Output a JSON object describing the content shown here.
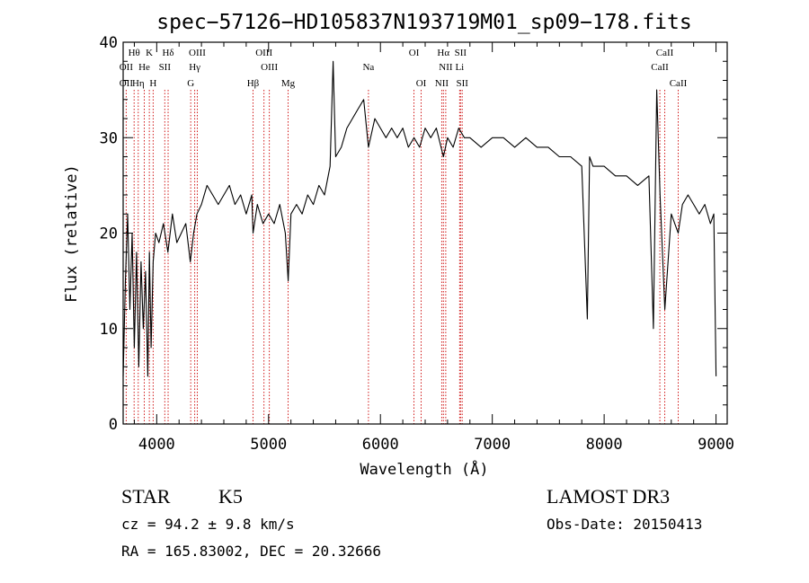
{
  "chart_data": {
    "type": "line",
    "title": "spec−57126−HD105837N193719M01_sp09−178.fits",
    "xlabel": "Wavelength (Å)",
    "ylabel": "Flux (relative)",
    "xlim": [
      3700,
      9100
    ],
    "ylim": [
      0,
      40
    ],
    "x_ticks": [
      4000,
      5000,
      6000,
      7000,
      8000,
      9000
    ],
    "y_ticks": [
      0,
      10,
      20,
      30,
      40
    ],
    "grid": false,
    "series": [
      {
        "x": [
          3700,
          3720,
          3740,
          3760,
          3780,
          3800,
          3820,
          3840,
          3860,
          3880,
          3900,
          3920,
          3935,
          3950,
          3968,
          3990,
          4020,
          4060,
          4100,
          4140,
          4180,
          4220,
          4260,
          4300,
          4330,
          4360,
          4400,
          4450,
          4500,
          4550,
          4600,
          4650,
          4700,
          4750,
          4800,
          4850,
          4861,
          4900,
          4950,
          5000,
          5050,
          5100,
          5150,
          5175,
          5200,
          5250,
          5300,
          5350,
          5400,
          5450,
          5500,
          5550,
          5577,
          5600,
          5650,
          5700,
          5750,
          5800,
          5850,
          5893,
          5950,
          6000,
          6050,
          6100,
          6150,
          6200,
          6250,
          6300,
          6350,
          6400,
          6450,
          6500,
          6563,
          6600,
          6650,
          6700,
          6750,
          6800,
          6900,
          7000,
          7100,
          7200,
          7300,
          7400,
          7500,
          7600,
          7700,
          7800,
          7850,
          7870,
          7900,
          8000,
          8100,
          8200,
          8300,
          8400,
          8440,
          8470,
          8500,
          8542,
          8600,
          8662,
          8700,
          8750,
          8800,
          8850,
          8900,
          8950,
          8980,
          9000
        ],
        "values": [
          5,
          15,
          22,
          12,
          20,
          8,
          18,
          6,
          17,
          10,
          16,
          5,
          18,
          8,
          17,
          20,
          19,
          21,
          18,
          22,
          19,
          20,
          21,
          17,
          20,
          22,
          23,
          25,
          24,
          23,
          24,
          25,
          23,
          24,
          22,
          24,
          20,
          23,
          21,
          22,
          21,
          23,
          20,
          15,
          22,
          23,
          22,
          24,
          23,
          25,
          24,
          27,
          38,
          28,
          29,
          31,
          32,
          33,
          34,
          29,
          32,
          31,
          30,
          31,
          30,
          31,
          29,
          30,
          29,
          31,
          30,
          31,
          28,
          30,
          29,
          31,
          30,
          30,
          29,
          30,
          30,
          29,
          30,
          29,
          29,
          28,
          28,
          27,
          11,
          28,
          27,
          27,
          26,
          26,
          25,
          26,
          10,
          35,
          24,
          12,
          22,
          20,
          23,
          24,
          23,
          22,
          23,
          21,
          22,
          5
        ]
      }
    ],
    "line_markers": [
      {
        "label": "Hθ",
        "x": 3798,
        "row": 1
      },
      {
        "label": "OII",
        "x": 3727,
        "row": 2
      },
      {
        "label": "OII",
        "x": 3727,
        "row": 3
      },
      {
        "label": "He",
        "x": 3889,
        "row": 2
      },
      {
        "label": "Hη",
        "x": 3835,
        "row": 3
      },
      {
        "label": "K",
        "x": 3934,
        "row": 1
      },
      {
        "label": "H",
        "x": 3968,
        "row": 3
      },
      {
        "label": "SII",
        "x": 4072,
        "row": 2
      },
      {
        "label": "Hδ",
        "x": 4102,
        "row": 1
      },
      {
        "label": "OIII",
        "x": 4363,
        "row": 1
      },
      {
        "label": "Hγ",
        "x": 4340,
        "row": 2
      },
      {
        "label": "G",
        "x": 4304,
        "row": 3
      },
      {
        "label": "OIII",
        "x": 4959,
        "row": 1
      },
      {
        "label": "OIII",
        "x": 5007,
        "row": 2
      },
      {
        "label": "Hβ",
        "x": 4861,
        "row": 3
      },
      {
        "label": "Mg",
        "x": 5175,
        "row": 3
      },
      {
        "label": "Na",
        "x": 5893,
        "row": 2
      },
      {
        "label": "OI",
        "x": 6300,
        "row": 1
      },
      {
        "label": "OI",
        "x": 6364,
        "row": 3
      },
      {
        "label": "Hα",
        "x": 6563,
        "row": 1
      },
      {
        "label": "NII",
        "x": 6584,
        "row": 2
      },
      {
        "label": "NII",
        "x": 6548,
        "row": 3
      },
      {
        "label": "SII",
        "x": 6716,
        "row": 1
      },
      {
        "label": "Li",
        "x": 6708,
        "row": 2
      },
      {
        "label": "SII",
        "x": 6731,
        "row": 3
      },
      {
        "label": "CaII",
        "x": 8542,
        "row": 1
      },
      {
        "label": "CaII",
        "x": 8498,
        "row": 2
      },
      {
        "label": "CaII",
        "x": 8662,
        "row": 3
      }
    ],
    "colors": {
      "spectrum": "#000000",
      "marker_line": "#cc0000",
      "axes": "#000000"
    }
  },
  "info": {
    "object_type": "STAR",
    "subclass": "K5",
    "survey": "LAMOST DR3",
    "cz": "cz = 94.2 ± 9.8 km/s",
    "obs_date": "Obs-Date: 20150413",
    "coords": "RA = 165.83002, DEC =  20.32666"
  }
}
